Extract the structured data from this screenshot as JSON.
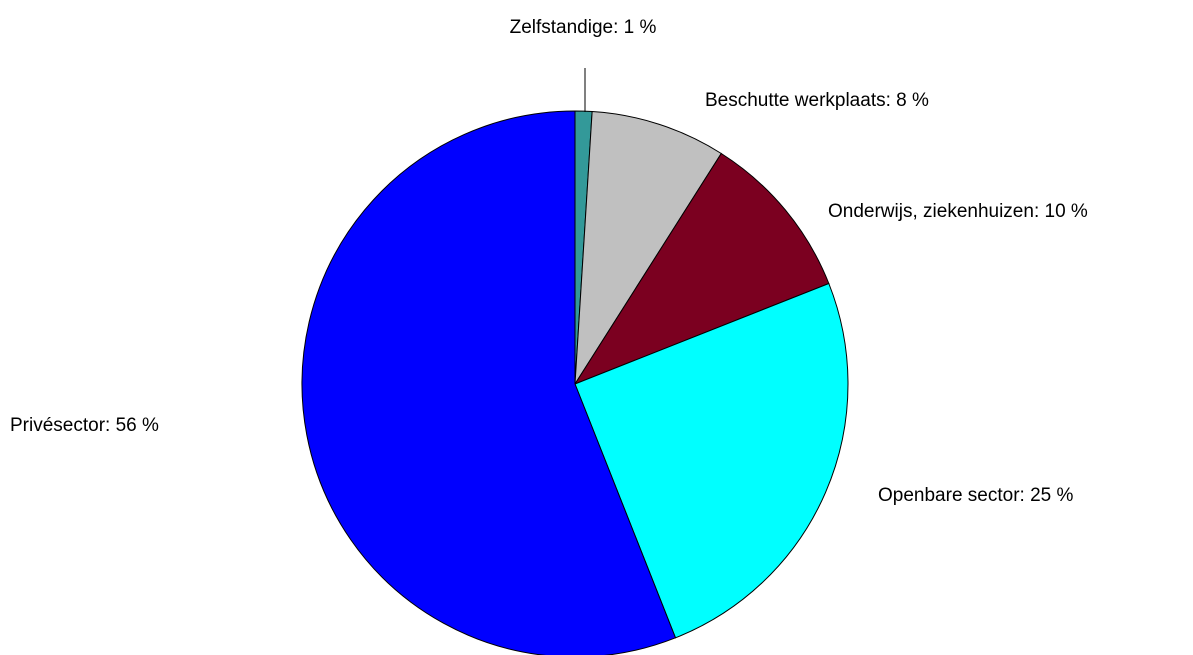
{
  "chart_data": {
    "type": "pie",
    "labels": [
      "Zelfstandige: 1 %",
      "Beschutte werkplaats: 8 %",
      "Onderwijs, ziekenhuizen: 10 %",
      "Openbare sector: 25 %",
      "Privésector: 56 %"
    ],
    "values": [
      1,
      8,
      10,
      25,
      56
    ],
    "colors": [
      "#339999",
      "#c0c0c0",
      "#7b0020",
      "#00ffff",
      "#0000ff"
    ]
  }
}
